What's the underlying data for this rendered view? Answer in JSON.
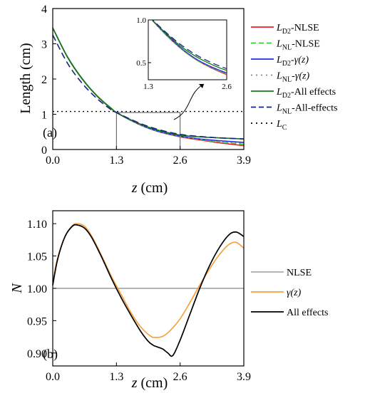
{
  "chart_data": [
    {
      "panel_label": "(a)",
      "type": "line",
      "xlabel": "z (cm)",
      "ylabel": "Length (cm)",
      "xlim": [
        0,
        3.9
      ],
      "ylim": [
        0,
        4
      ],
      "xticks": [
        0.0,
        1.3,
        2.6,
        3.9
      ],
      "xtick_labels": [
        "0.0",
        "1.3",
        "2.6",
        "3.9"
      ],
      "yticks": [
        0,
        1,
        2,
        3,
        4
      ],
      "ytick_labels": [
        "0",
        "1",
        "2",
        "3",
        "4"
      ],
      "legend_position": "right",
      "highlight_box": {
        "x": [
          1.3,
          2.6
        ],
        "y": [
          0,
          1.05
        ]
      },
      "series": [
        {
          "name": "LD2-NLSE",
          "legend_main": "L",
          "legend_sub": "D2",
          "legend_suffix": "-NLSE",
          "color": "#ee1c25",
          "dash": "solid",
          "x": [
            0,
            0.3,
            0.6,
            0.9,
            1.2,
            1.3,
            1.6,
            1.9,
            2.2,
            2.6,
            3.0,
            3.4,
            3.9
          ],
          "y": [
            3.45,
            2.62,
            2.0,
            1.52,
            1.15,
            1.05,
            0.82,
            0.63,
            0.49,
            0.36,
            0.27,
            0.19,
            0.11
          ]
        },
        {
          "name": "LNL-NLSE",
          "legend_main": "L",
          "legend_sub": "NL",
          "legend_suffix": "-NLSE",
          "color": "#38c838",
          "dash": "7,4",
          "x": [
            0,
            0.3,
            0.6,
            0.9,
            1.2,
            1.3,
            1.6,
            1.9,
            2.2,
            2.6,
            3.0,
            3.4,
            3.9
          ],
          "y": [
            3.45,
            2.62,
            2.0,
            1.52,
            1.15,
            1.05,
            0.82,
            0.63,
            0.49,
            0.37,
            0.28,
            0.21,
            0.15
          ]
        },
        {
          "name": "LD2-γ(z)",
          "legend_main": "L",
          "legend_sub": "D2",
          "legend_suffix": "-γ(z)",
          "color": "#1f2fe0",
          "dash": "solid",
          "x": [
            0,
            0.3,
            0.6,
            0.9,
            1.2,
            1.3,
            1.6,
            1.9,
            2.2,
            2.6,
            3.0,
            3.4,
            3.9
          ],
          "y": [
            3.45,
            2.63,
            2.01,
            1.53,
            1.16,
            1.05,
            0.83,
            0.64,
            0.5,
            0.38,
            0.3,
            0.25,
            0.2
          ]
        },
        {
          "name": "LNL-γ(z)",
          "legend_main": "L",
          "legend_sub": "NL",
          "legend_suffix": "-γ(z)",
          "color": "#8a8a8a",
          "dash": "2,4",
          "x": [
            0,
            0.3,
            0.6,
            0.9,
            1.2,
            1.3,
            1.6,
            1.9,
            2.2,
            2.6,
            3.0,
            3.4,
            3.9
          ],
          "y": [
            3.45,
            2.62,
            2.0,
            1.52,
            1.15,
            1.05,
            0.82,
            0.63,
            0.49,
            0.37,
            0.29,
            0.22,
            0.17
          ]
        },
        {
          "name": "LD2-All effects",
          "legend_main": "L",
          "legend_sub": "D2",
          "legend_suffix": "-All effects",
          "color": "#117a11",
          "dash": "solid",
          "x": [
            0,
            0.3,
            0.6,
            0.9,
            1.2,
            1.3,
            1.6,
            1.9,
            2.2,
            2.6,
            3.0,
            3.4,
            3.9
          ],
          "y": [
            3.45,
            2.63,
            2.01,
            1.53,
            1.16,
            1.05,
            0.84,
            0.66,
            0.53,
            0.41,
            0.36,
            0.33,
            0.3
          ]
        },
        {
          "name": "LNL-All-effects",
          "legend_main": "L",
          "legend_sub": "NL",
          "legend_suffix": "-All-effects",
          "color": "#1a237e",
          "dash": "9,5",
          "x": [
            0,
            0.3,
            0.6,
            0.9,
            1.2,
            1.3,
            1.6,
            1.9,
            2.2,
            2.6,
            3.0,
            3.4,
            3.9
          ],
          "y": [
            3.25,
            2.45,
            1.88,
            1.45,
            1.12,
            1.05,
            0.85,
            0.68,
            0.55,
            0.43,
            0.37,
            0.33,
            0.3
          ]
        },
        {
          "name": "LC",
          "legend_main": "L",
          "legend_sub": "C",
          "legend_suffix": "",
          "color": "#000000",
          "dash": "2,4",
          "x": [
            0,
            3.9
          ],
          "y": [
            1.08,
            1.08
          ]
        }
      ],
      "inset": {
        "xlim": [
          1.3,
          2.6
        ],
        "ylim": [
          0.3,
          1.0
        ],
        "xticks": [
          1.3,
          2.6
        ],
        "xtick_labels": [
          "1.3",
          "2.6"
        ],
        "yticks": [
          0.5,
          1.0
        ],
        "ytick_labels": [
          "0.5",
          "1.0"
        ]
      }
    },
    {
      "panel_label": "(b)",
      "type": "line",
      "xlabel": "z (cm)",
      "ylabel": "N",
      "xlim": [
        0,
        3.9
      ],
      "ylim": [
        0.88,
        1.12
      ],
      "xticks": [
        0.0,
        1.3,
        2.6,
        3.9
      ],
      "xtick_labels": [
        "0.0",
        "1.3",
        "2.6",
        "3.9"
      ],
      "yticks": [
        0.9,
        0.95,
        1.0,
        1.05,
        1.1
      ],
      "ytick_labels": [
        "0.90",
        "0.95",
        "1.00",
        "1.05",
        "1.10"
      ],
      "legend_position": "right",
      "series": [
        {
          "name": "NLSE",
          "color": "#8a8a8a",
          "x": [
            0,
            3.9
          ],
          "y": [
            1.0,
            1.0
          ]
        },
        {
          "name": "γ(z)",
          "color": "#f7a040",
          "x": [
            0,
            0.1,
            0.25,
            0.4,
            0.5,
            0.65,
            0.8,
            1.0,
            1.2,
            1.4,
            1.6,
            1.8,
            2.0,
            2.1,
            2.25,
            2.4,
            2.6,
            2.8,
            3.0,
            3.2,
            3.4,
            3.6,
            3.75,
            3.9
          ],
          "y": [
            1.01,
            1.047,
            1.08,
            1.097,
            1.1,
            1.096,
            1.08,
            1.05,
            1.018,
            0.99,
            0.962,
            0.94,
            0.926,
            0.924,
            0.926,
            0.935,
            0.953,
            0.978,
            1.005,
            1.03,
            1.052,
            1.068,
            1.071,
            1.062
          ]
        },
        {
          "name": "All effects",
          "color": "#000000",
          "x": [
            0,
            0.1,
            0.25,
            0.4,
            0.5,
            0.65,
            0.8,
            1.0,
            1.2,
            1.4,
            1.6,
            1.8,
            1.95,
            2.05,
            2.15,
            2.25,
            2.35,
            2.45,
            2.6,
            2.8,
            3.0,
            3.2,
            3.4,
            3.6,
            3.75,
            3.9
          ],
          "y": [
            1.005,
            1.045,
            1.08,
            1.096,
            1.098,
            1.093,
            1.078,
            1.048,
            1.015,
            0.985,
            0.958,
            0.933,
            0.918,
            0.912,
            0.909,
            0.906,
            0.9,
            0.896,
            0.92,
            0.96,
            1.0,
            1.035,
            1.063,
            1.083,
            1.087,
            1.08
          ]
        }
      ]
    }
  ]
}
